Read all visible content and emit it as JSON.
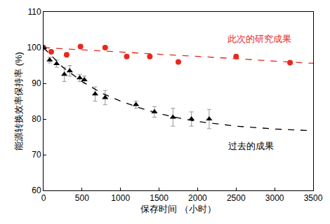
{
  "chart_data": {
    "type": "scatter",
    "x_label": "保存时间 （小时）",
    "y_label": "能源转换效率保持率 (%)",
    "xlim": [
      0,
      3500
    ],
    "xticks": [
      0,
      500,
      1000,
      1500,
      2000,
      2500,
      3000,
      3500
    ],
    "ylim": [
      60,
      110
    ],
    "yticks": [
      60,
      70,
      80,
      90,
      100,
      110
    ],
    "grid": false,
    "annotations": [
      {
        "text": "此次的研究成果",
        "color": "#e8281e"
      },
      {
        "text": "过去的成果",
        "color": "#000000"
      }
    ],
    "series": [
      {
        "type": "scatter",
        "color": "#e8281e",
        "marker": "circle",
        "x": [
          0,
          100,
          300,
          480,
          800,
          1080,
          1380,
          1750,
          2500,
          3200
        ],
        "values": [
          100,
          98.8,
          98,
          100.3,
          100,
          97.5,
          97.5,
          96,
          97.5,
          95.8
        ]
      },
      {
        "type": "scatter",
        "color": "#000000",
        "marker": "triangle-up",
        "x": [
          0,
          80,
          170,
          270,
          340,
          470,
          530,
          670,
          800,
          1200,
          1440,
          1680,
          1920,
          2150
        ],
        "values": [
          100,
          96.5,
          95.5,
          92.5,
          93.5,
          91.5,
          91,
          87,
          86,
          84,
          82,
          80.5,
          80,
          80
        ],
        "errors": [
          0.5,
          0.8,
          1,
          2,
          1.5,
          1,
          1,
          2,
          2,
          1,
          1.5,
          2.5,
          2,
          2.7
        ]
      },
      {
        "type": "line",
        "color": "#e8281e",
        "line_style": "dashed",
        "x": [
          0,
          500,
          1000,
          1500,
          2000,
          2500,
          3000,
          3500
        ],
        "values": [
          100,
          99.4,
          98.8,
          98.2,
          97.5,
          96.9,
          96.2,
          95.6
        ]
      },
      {
        "type": "line",
        "color": "#000000",
        "line_style": "dashed",
        "x": [
          0,
          250,
          500,
          750,
          1000,
          1250,
          1500,
          1750,
          2000,
          2500,
          3000,
          3500
        ],
        "values": [
          100,
          94.5,
          90.5,
          87.3,
          85,
          83.1,
          81.5,
          80.3,
          79.3,
          78,
          77.2,
          76.7
        ]
      }
    ]
  }
}
